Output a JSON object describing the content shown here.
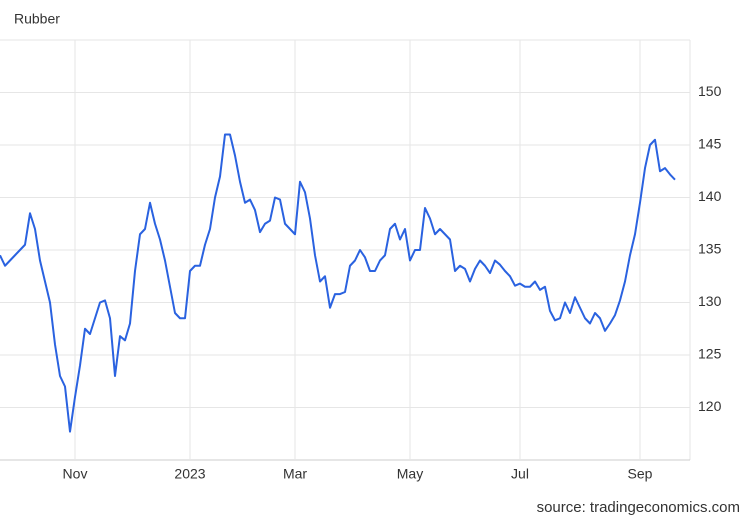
{
  "chart_data": {
    "type": "line",
    "title": "Rubber",
    "source": "source: tradingeconomics.com",
    "categories": [
      null,
      null,
      null,
      null,
      null,
      null,
      null,
      null,
      null,
      null,
      null,
      null,
      null,
      null,
      null,
      "Nov",
      null,
      null,
      null,
      null,
      null,
      null,
      null,
      null,
      null,
      null,
      null,
      null,
      null,
      null,
      null,
      null,
      null,
      null,
      null,
      null,
      null,
      null,
      "2023",
      null,
      null,
      null,
      null,
      null,
      null,
      null,
      null,
      null,
      null,
      null,
      null,
      null,
      null,
      null,
      null,
      null,
      null,
      null,
      null,
      "Mar",
      null,
      null,
      null,
      null,
      null,
      null,
      null,
      null,
      null,
      null,
      null,
      null,
      null,
      null,
      null,
      null,
      null,
      null,
      null,
      null,
      null,
      null,
      "May",
      null,
      null,
      null,
      null,
      null,
      null,
      null,
      null,
      null,
      null,
      null,
      null,
      null,
      null,
      null,
      null,
      null,
      null,
      null,
      null,
      null,
      "Jul",
      null,
      null,
      null,
      null,
      null,
      null,
      null,
      null,
      null,
      null,
      null,
      null,
      null,
      null,
      null,
      null,
      null,
      null,
      null,
      null,
      null,
      null,
      null,
      "Sep",
      null,
      null,
      null,
      null,
      null,
      null,
      null
    ],
    "series": [
      {
        "name": "Rubber",
        "color": "#2a62e0",
        "values": [
          134.5,
          133.5,
          134,
          134.5,
          135,
          135.5,
          138.5,
          137,
          134,
          132,
          130,
          126,
          123,
          122,
          117.7,
          121,
          124,
          127.5,
          127,
          128.5,
          130,
          130.2,
          128.5,
          123,
          126.8,
          126.4,
          128,
          133,
          136.5,
          137,
          139.5,
          137.5,
          136,
          134,
          131.5,
          129,
          128.5,
          128.5,
          133,
          133.5,
          133.5,
          135.5,
          137,
          140,
          142,
          146,
          146,
          144,
          141.5,
          139.5,
          139.8,
          138.8,
          136.7,
          137.5,
          137.8,
          140,
          139.8,
          137.5,
          137,
          136.5,
          141.5,
          140.5,
          138,
          134.5,
          132,
          132.5,
          129.5,
          130.8,
          130.8,
          131,
          133.5,
          134,
          135,
          134.3,
          133,
          133,
          134,
          134.5,
          137,
          137.5,
          136,
          137,
          134,
          135,
          135,
          139,
          138,
          136.5,
          137,
          136.5,
          136,
          133,
          133.5,
          133.2,
          132,
          133.2,
          134,
          133.5,
          132.8,
          134,
          133.6,
          133,
          132.5,
          131.6,
          131.8,
          131.5,
          131.5,
          132,
          131.2,
          131.5,
          129.2,
          128.3,
          128.5,
          130,
          129,
          130.5,
          129.5,
          128.5,
          128,
          129,
          128.5,
          127.3,
          128,
          128.8,
          130.2,
          132,
          134.5,
          136.5,
          139.5,
          142.8,
          145,
          145.5,
          142.5,
          142.8,
          142.2,
          141.7
        ]
      }
    ],
    "ylim": [
      115,
      155
    ],
    "yticks": [
      120,
      125,
      130,
      135,
      140,
      145,
      150
    ],
    "grid": true
  }
}
